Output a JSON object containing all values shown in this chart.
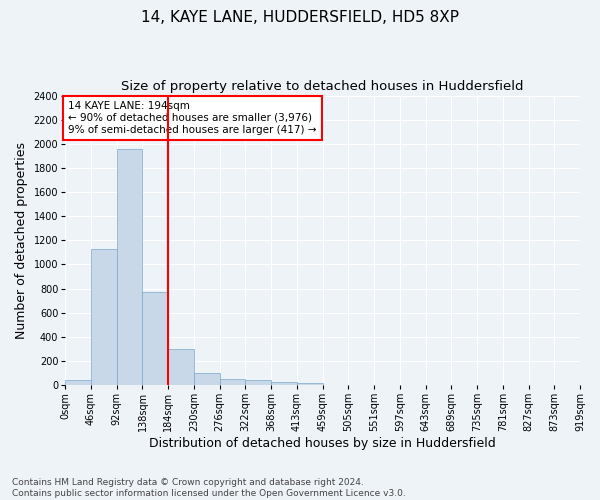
{
  "title1": "14, KAYE LANE, HUDDERSFIELD, HD5 8XP",
  "title2": "Size of property relative to detached houses in Huddersfield",
  "xlabel": "Distribution of detached houses by size in Huddersfield",
  "ylabel": "Number of detached properties",
  "bin_labels": [
    "0sqm",
    "46sqm",
    "92sqm",
    "138sqm",
    "184sqm",
    "230sqm",
    "276sqm",
    "322sqm",
    "368sqm",
    "413sqm",
    "459sqm",
    "505sqm",
    "551sqm",
    "597sqm",
    "643sqm",
    "689sqm",
    "735sqm",
    "781sqm",
    "827sqm",
    "873sqm",
    "919sqm"
  ],
  "bar_heights": [
    40,
    1130,
    1960,
    770,
    300,
    100,
    47,
    40,
    25,
    20,
    0,
    0,
    0,
    0,
    0,
    0,
    0,
    0,
    0,
    0
  ],
  "bar_color": "#c8d8e8",
  "bar_edge_color": "#7aa8cc",
  "vline_x": 4,
  "vline_color": "red",
  "annotation_text": "14 KAYE LANE: 194sqm\n← 90% of detached houses are smaller (3,976)\n9% of semi-detached houses are larger (417) →",
  "annotation_box_color": "white",
  "annotation_box_edge_color": "red",
  "ylim": [
    0,
    2400
  ],
  "yticks": [
    0,
    200,
    400,
    600,
    800,
    1000,
    1200,
    1400,
    1600,
    1800,
    2000,
    2200,
    2400
  ],
  "footnote": "Contains HM Land Registry data © Crown copyright and database right 2024.\nContains public sector information licensed under the Open Government Licence v3.0.",
  "bg_color": "#eef3f8",
  "grid_color": "white",
  "title1_fontsize": 11,
  "title2_fontsize": 9.5,
  "xlabel_fontsize": 9,
  "ylabel_fontsize": 9,
  "footnote_fontsize": 6.5,
  "annotation_fontsize": 7.5,
  "tick_fontsize": 7,
  "ytick_fontsize": 7
}
